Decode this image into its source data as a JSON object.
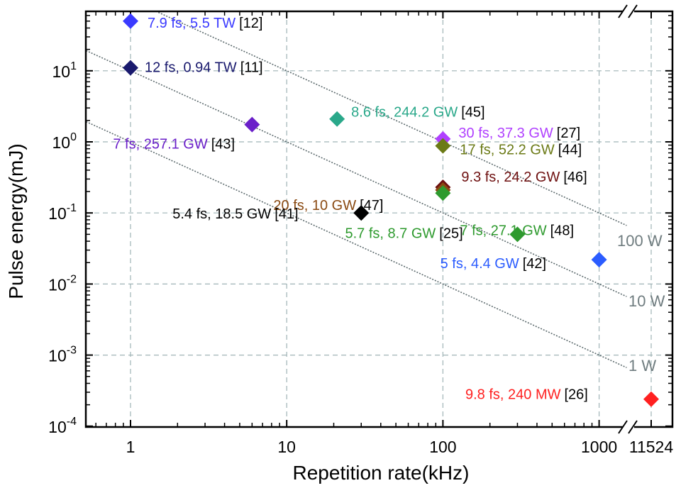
{
  "chart_data": {
    "type": "scatter",
    "title": "",
    "xlabel": "Repetition rate(kHz)",
    "ylabel": "Pulse energy(mJ)",
    "x_scale": "log",
    "y_scale": "log",
    "xlim": [
      0.5,
      2000
    ],
    "ylim": [
      0.0001,
      70
    ],
    "axis_break": "between 1000 and 11524 kHz",
    "grid": true,
    "x_ticks": [
      {
        "value": 1,
        "label": "1"
      },
      {
        "value": 10,
        "label": "10"
      },
      {
        "value": 100,
        "label": "100"
      },
      {
        "value": 1000,
        "label": "1000"
      },
      {
        "value": 11524,
        "label": "11524"
      }
    ],
    "y_ticks": [
      {
        "value": 0.0001,
        "base": "10",
        "exp": "-4"
      },
      {
        "value": 0.001,
        "base": "10",
        "exp": "-3"
      },
      {
        "value": 0.01,
        "base": "10",
        "exp": "-2"
      },
      {
        "value": 0.1,
        "base": "10",
        "exp": "-1"
      },
      {
        "value": 1,
        "base": "10",
        "exp": "0"
      },
      {
        "value": 10,
        "base": "10",
        "exp": "1"
      }
    ],
    "average_power_lines": [
      {
        "label": "1 W",
        "power_w": 1
      },
      {
        "label": "10 W",
        "power_w": 10
      },
      {
        "label": "100 W",
        "power_w": 100
      }
    ],
    "points": [
      {
        "x": 1,
        "y": 50,
        "text": "7.9 fs, 5.5 TW",
        "ref": "[12]",
        "color": "#3a3aff"
      },
      {
        "x": 1,
        "y": 11,
        "text": "12 fs, 0.94 TW",
        "ref": "[11]",
        "color": "#1a1a6e"
      },
      {
        "x": 6,
        "y": 1.75,
        "text": "7 fs, 257.1 GW",
        "ref": "[43]",
        "color": "#6a1fc9"
      },
      {
        "x": 21,
        "y": 2.1,
        "text": "8.6 fs, 244.2 GW",
        "ref": "[45]",
        "color": "#2aa88a"
      },
      {
        "x": 100,
        "y": 1.1,
        "text": "30 fs, 37.3 GW",
        "ref": "[27]",
        "color": "#b040ff"
      },
      {
        "x": 100,
        "y": 0.88,
        "text": "17 fs, 52.2 GW",
        "ref": "[44]",
        "color": "#6b7a16"
      },
      {
        "x": 100,
        "y": 0.23,
        "text": "9.3 fs, 24.2 GW",
        "ref": "[46]",
        "color": "#6e1010"
      },
      {
        "x": 100,
        "y": 0.21,
        "text": "20 fs, 10 GW",
        "ref": "[47]",
        "color": "#8a4a12"
      },
      {
        "x": 100,
        "y": 0.19,
        "text": "7 fs, 27.1 GW",
        "ref": "[48]",
        "color": "#2e9a2e"
      },
      {
        "x": 30,
        "y": 0.1,
        "text": "5.4 fs, 18.5 GW",
        "ref": "[41]",
        "color": "#000000"
      },
      {
        "x": 300,
        "y": 0.05,
        "text": "5.7 fs, 8.7 GW",
        "ref": "[25]",
        "color": "#2e9a2e"
      },
      {
        "x": 1000,
        "y": 0.022,
        "text": "5 fs, 4.4 GW",
        "ref": "[42]",
        "color": "#2b5cff"
      },
      {
        "x": 11524,
        "y": 0.00024,
        "text": "9.8 fs, 240 MW",
        "ref": "[26]",
        "color": "#ff2020"
      }
    ]
  }
}
